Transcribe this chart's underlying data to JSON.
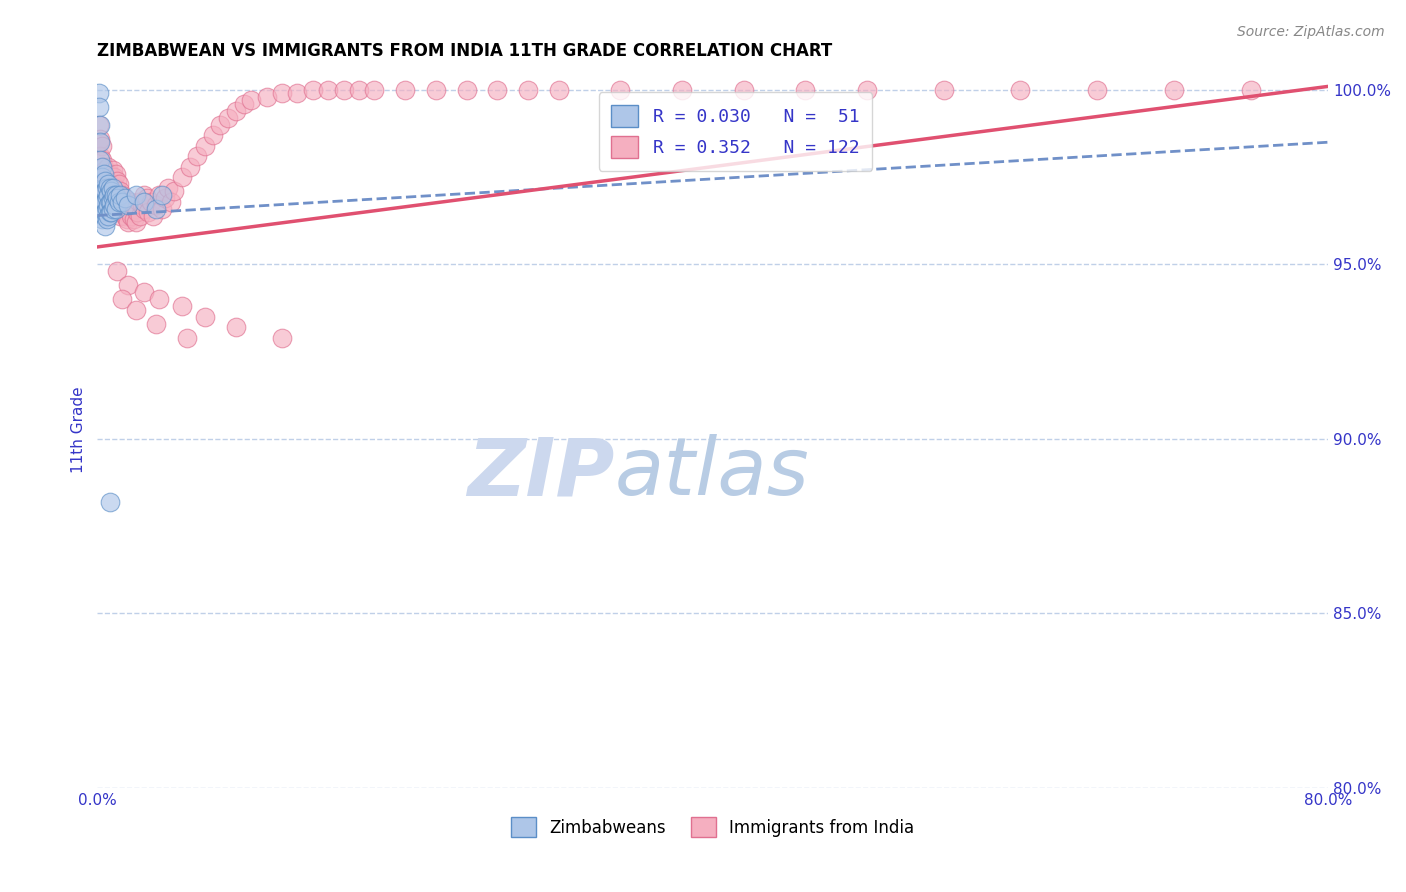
{
  "title": "ZIMBABWEAN VS IMMIGRANTS FROM INDIA 11TH GRADE CORRELATION CHART",
  "source_text": "Source: ZipAtlas.com",
  "ylabel": "11th Grade",
  "xlim": [
    0.0,
    0.8
  ],
  "ylim": [
    0.8,
    1.005
  ],
  "xtick_positions": [
    0.0,
    0.2,
    0.4,
    0.6,
    0.8
  ],
  "xticklabels": [
    "0.0%",
    "",
    "",
    "",
    "80.0%"
  ],
  "yticks_right": [
    0.8,
    0.85,
    0.9,
    0.95,
    1.0
  ],
  "ytick_right_labels": [
    "80.0%",
    "85.0%",
    "90.0%",
    "95.0%",
    "100.0%"
  ],
  "legend_line1": "R = 0.030   N =  51",
  "legend_line2": "R = 0.352   N = 122",
  "color_blue_fill": "#aec6e8",
  "color_blue_edge": "#5b8ec7",
  "color_pink_fill": "#f5afc0",
  "color_pink_edge": "#e07090",
  "color_blue_line": "#7090c8",
  "color_pink_line": "#e05070",
  "color_legend_text": "#3535c8",
  "watermark_color": "#ccd8ee",
  "background_color": "#ffffff",
  "grid_color": "#c0d0e8",
  "title_fontsize": 12,
  "blue_trend_x": [
    0.0,
    0.8
  ],
  "blue_trend_y": [
    0.964,
    0.985
  ],
  "pink_trend_x": [
    0.0,
    0.8
  ],
  "pink_trend_y": [
    0.955,
    1.001
  ],
  "blue_scatter_x": [
    0.001,
    0.001,
    0.002,
    0.002,
    0.002,
    0.003,
    0.003,
    0.003,
    0.003,
    0.003,
    0.004,
    0.004,
    0.004,
    0.004,
    0.005,
    0.005,
    0.005,
    0.005,
    0.005,
    0.006,
    0.006,
    0.006,
    0.006,
    0.007,
    0.007,
    0.007,
    0.007,
    0.008,
    0.008,
    0.008,
    0.009,
    0.009,
    0.009,
    0.01,
    0.01,
    0.01,
    0.011,
    0.011,
    0.012,
    0.012,
    0.013,
    0.014,
    0.015,
    0.016,
    0.018,
    0.02,
    0.025,
    0.03,
    0.038,
    0.042,
    0.008
  ],
  "blue_scatter_y": [
    0.999,
    0.995,
    0.99,
    0.985,
    0.98,
    0.978,
    0.975,
    0.97,
    0.967,
    0.963,
    0.976,
    0.972,
    0.968,
    0.964,
    0.974,
    0.971,
    0.968,
    0.965,
    0.961,
    0.972,
    0.969,
    0.966,
    0.963,
    0.973,
    0.97,
    0.967,
    0.964,
    0.972,
    0.968,
    0.965,
    0.971,
    0.968,
    0.965,
    0.972,
    0.969,
    0.966,
    0.97,
    0.967,
    0.97,
    0.966,
    0.969,
    0.968,
    0.97,
    0.968,
    0.969,
    0.967,
    0.97,
    0.968,
    0.966,
    0.97,
    0.882
  ],
  "pink_scatter_x": [
    0.001,
    0.001,
    0.002,
    0.002,
    0.003,
    0.003,
    0.003,
    0.004,
    0.004,
    0.005,
    0.005,
    0.005,
    0.006,
    0.006,
    0.006,
    0.007,
    0.007,
    0.007,
    0.007,
    0.008,
    0.008,
    0.008,
    0.009,
    0.009,
    0.009,
    0.01,
    0.01,
    0.01,
    0.01,
    0.011,
    0.011,
    0.011,
    0.012,
    0.012,
    0.012,
    0.013,
    0.013,
    0.014,
    0.014,
    0.015,
    0.015,
    0.015,
    0.016,
    0.016,
    0.017,
    0.017,
    0.018,
    0.018,
    0.019,
    0.019,
    0.02,
    0.02,
    0.021,
    0.022,
    0.022,
    0.023,
    0.024,
    0.025,
    0.025,
    0.026,
    0.027,
    0.028,
    0.029,
    0.03,
    0.03,
    0.032,
    0.033,
    0.035,
    0.036,
    0.038,
    0.04,
    0.042,
    0.044,
    0.046,
    0.048,
    0.05,
    0.055,
    0.06,
    0.065,
    0.07,
    0.075,
    0.08,
    0.085,
    0.09,
    0.095,
    0.1,
    0.11,
    0.12,
    0.13,
    0.14,
    0.15,
    0.16,
    0.17,
    0.18,
    0.2,
    0.22,
    0.24,
    0.26,
    0.28,
    0.3,
    0.34,
    0.38,
    0.42,
    0.46,
    0.5,
    0.55,
    0.6,
    0.65,
    0.7,
    0.75,
    0.013,
    0.02,
    0.03,
    0.04,
    0.055,
    0.07,
    0.09,
    0.12,
    0.016,
    0.025,
    0.038,
    0.058
  ],
  "pink_scatter_y": [
    0.99,
    0.985,
    0.986,
    0.981,
    0.984,
    0.98,
    0.975,
    0.978,
    0.973,
    0.977,
    0.973,
    0.969,
    0.975,
    0.971,
    0.968,
    0.978,
    0.974,
    0.971,
    0.967,
    0.976,
    0.973,
    0.969,
    0.975,
    0.971,
    0.968,
    0.977,
    0.973,
    0.97,
    0.966,
    0.975,
    0.972,
    0.968,
    0.976,
    0.972,
    0.968,
    0.974,
    0.97,
    0.973,
    0.969,
    0.971,
    0.967,
    0.964,
    0.97,
    0.966,
    0.969,
    0.965,
    0.968,
    0.964,
    0.967,
    0.963,
    0.966,
    0.962,
    0.965,
    0.968,
    0.964,
    0.967,
    0.963,
    0.966,
    0.962,
    0.965,
    0.968,
    0.964,
    0.967,
    0.97,
    0.966,
    0.969,
    0.965,
    0.968,
    0.964,
    0.967,
    0.97,
    0.966,
    0.969,
    0.972,
    0.968,
    0.971,
    0.975,
    0.978,
    0.981,
    0.984,
    0.987,
    0.99,
    0.992,
    0.994,
    0.996,
    0.997,
    0.998,
    0.999,
    0.999,
    1.0,
    1.0,
    1.0,
    1.0,
    1.0,
    1.0,
    1.0,
    1.0,
    1.0,
    1.0,
    1.0,
    1.0,
    1.0,
    1.0,
    1.0,
    1.0,
    1.0,
    1.0,
    1.0,
    1.0,
    1.0,
    0.948,
    0.944,
    0.942,
    0.94,
    0.938,
    0.935,
    0.932,
    0.929,
    0.94,
    0.937,
    0.933,
    0.929
  ]
}
